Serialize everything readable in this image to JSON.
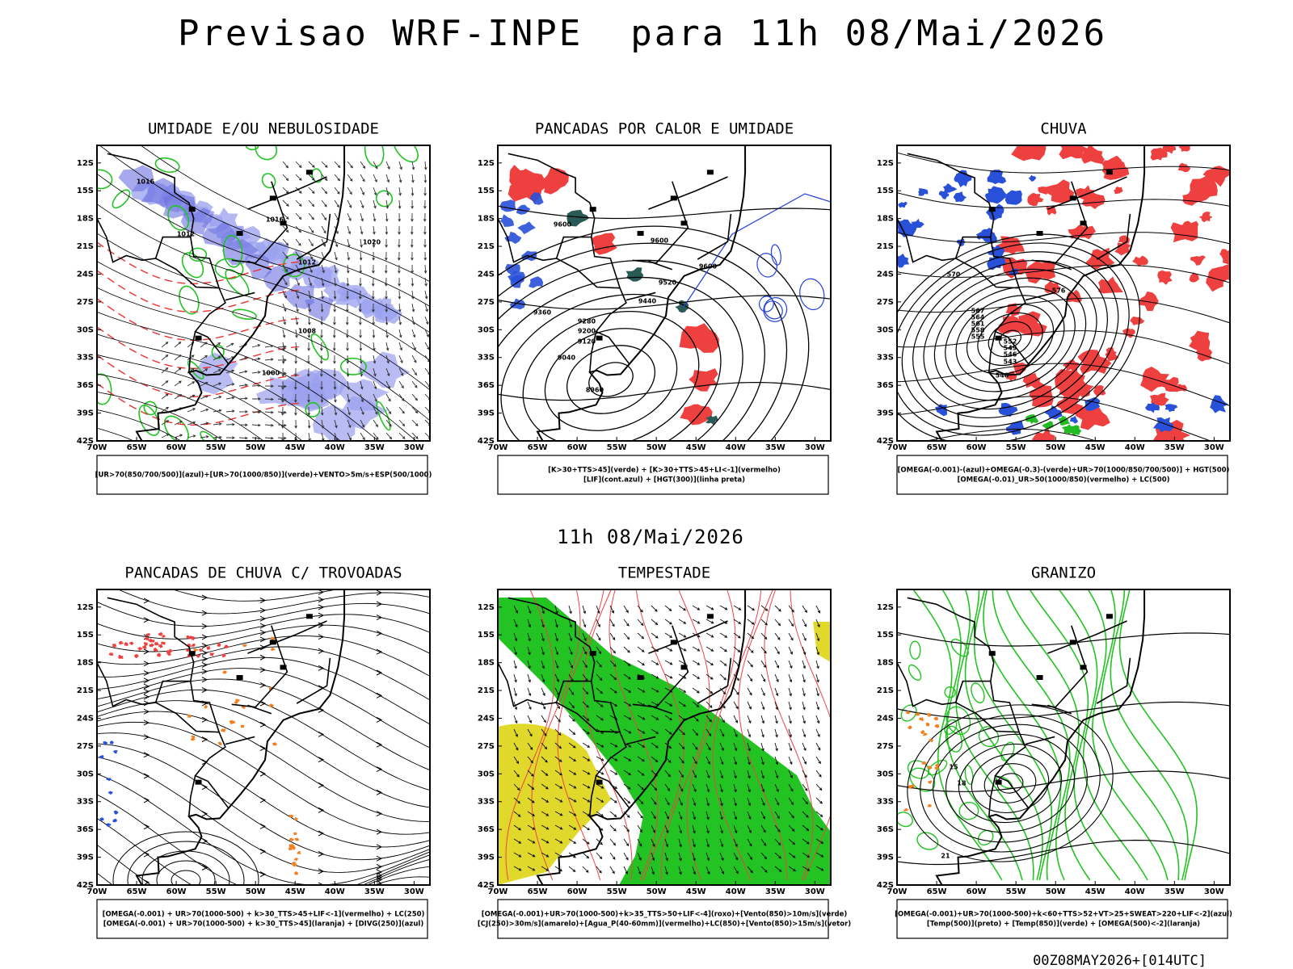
{
  "header": {
    "title": "Previsao WRF-INPE  para 11h 08/Mai/2026"
  },
  "subtitle": "11h 08/Mai/2026",
  "footer": "00Z08MAY2026+[014UTC]",
  "axes": {
    "lat_labels": [
      "12S",
      "15S",
      "18S",
      "21S",
      "24S",
      "27S",
      "30S",
      "33S",
      "36S",
      "39S",
      "42S"
    ],
    "lon_labels": [
      "70W",
      "65W",
      "60W",
      "55W",
      "50W",
      "45W",
      "40W",
      "35W",
      "30W"
    ]
  },
  "panels": [
    {
      "title": "UMIDADE E/OU NEBULOSIDADE",
      "legend": [
        "[UR>70(850/700/500)](azul)+[UR>70(1000/850)](verde)+VENTO>5m/s+ESP(500/1000)"
      ],
      "contour_labels": [
        "1016",
        "1012",
        "1016",
        "1020",
        "1012",
        "1008",
        "1000"
      ]
    },
    {
      "title": "PANCADAS POR CALOR E UMIDADE",
      "legend": [
        "[K>30+TTS>45](verde) + [K>30+TTS>45+LI<-1](vermelho)",
        "[LIF](cont.azul) + [HGT(300)](linha preta)"
      ],
      "contour_labels": [
        "9600",
        "9600",
        "9600",
        "9520",
        "9440",
        "9360",
        "9280",
        "9200",
        "9120",
        "9040",
        "8960"
      ]
    },
    {
      "title": "CHUVA",
      "legend": [
        "[OMEGA(-0.001)-(azul)+OMEGA(-0.3)-(verde)+UR>70(1000/850/700/500)] + HGT(500)",
        "[OMEGA(-0.01)_UR>50(1000/850)(vermelho) + LC(500)"
      ],
      "contour_labels": [
        "576",
        "570",
        "567",
        "564",
        "561",
        "558",
        "555",
        "552",
        "549",
        "546",
        "543",
        "540"
      ]
    },
    {
      "title": "PANCADAS DE CHUVA C/ TROVOADAS",
      "legend": [
        "[OMEGA(-0.001) + UR>70(1000-500) + k>30_TTS>45+LIF<-1](vermelho) + LC(250)",
        "[OMEGA(-0.001) + UR>70(1000-500) + k>30_TTS>45](laranja) + [DIVG(250)](azul)"
      ],
      "contour_labels": []
    },
    {
      "title": "TEMPESTADE",
      "legend": [
        "[OMEGA(-0.001)+UR>70(1000-500)+k>35_TTS>50+LIF<-4](roxo)+[Vento(850)>10m/s](verde)",
        "[CJ(250)>30m/s](amarelo)+[Agua_P(40-60mm)](vermelho)+LC(850)+[Vento(850)>15m/s](vetor)"
      ],
      "contour_labels": []
    },
    {
      "title": "GRANIZO",
      "legend": [
        "[OMEGA(-0.001)+UR>70(1000-500)+k<60+TTS>52+VT>25+SWEAT>220+LIF<-2](azul)",
        "[Temp(500)](preto) + [Temp(850)](verde) + [OMEGA(500)<-2](laranja)"
      ],
      "contour_labels": [
        "15",
        "18",
        "21"
      ]
    }
  ]
}
